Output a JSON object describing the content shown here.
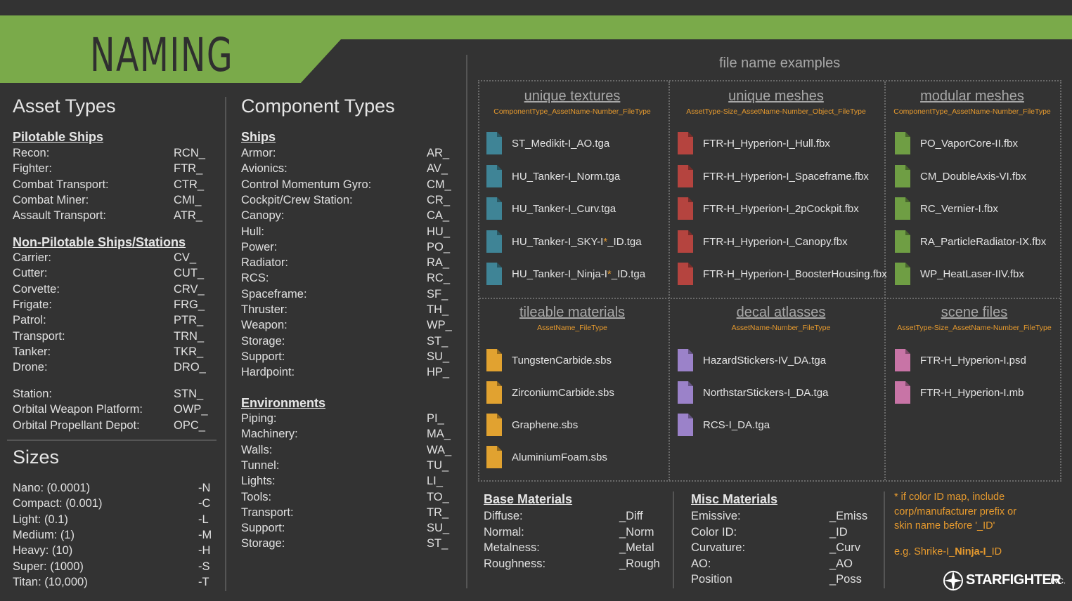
{
  "banner": {
    "title": "NAMING"
  },
  "asset_types": {
    "title": "Asset Types",
    "pilotable": {
      "heading": "Pilotable Ships",
      "items": [
        {
          "label": "Recon:",
          "code": "RCN_"
        },
        {
          "label": "Fighter:",
          "code": "FTR_"
        },
        {
          "label": "Combat Transport:",
          "code": "CTR_"
        },
        {
          "label": "Combat Miner:",
          "code": "CMI_"
        },
        {
          "label": "Assault Transport:",
          "code": "ATR_"
        }
      ]
    },
    "non_pilotable": {
      "heading": "Non-Pilotable Ships/Stations",
      "items": [
        {
          "label": "Carrier:",
          "code": "CV_"
        },
        {
          "label": "Cutter:",
          "code": "CUT_"
        },
        {
          "label": "Corvette:",
          "code": "CRV_"
        },
        {
          "label": "Frigate:",
          "code": "FRG_"
        },
        {
          "label": "Patrol:",
          "code": "PTR_"
        },
        {
          "label": "Transport:",
          "code": "TRN_"
        },
        {
          "label": "Tanker:",
          "code": "TKR_"
        },
        {
          "label": "Drone:",
          "code": "DRO_"
        }
      ],
      "stations": [
        {
          "label": "Station:",
          "code": "STN_"
        },
        {
          "label": "Orbital Weapon Platform:",
          "code": "OWP_"
        },
        {
          "label": "Orbital Propellant Depot:",
          "code": "OPC_"
        }
      ]
    }
  },
  "sizes": {
    "title": "Sizes",
    "items": [
      {
        "label": "Nano: (0.0001)",
        "code": "-N"
      },
      {
        "label": "Compact:  (0.001)",
        "code": "-C"
      },
      {
        "label": "Light: (0.1)",
        "code": "-L"
      },
      {
        "label": "Medium: (1)",
        "code": "-M"
      },
      {
        "label": "Heavy: (10)",
        "code": "-H"
      },
      {
        "label": "Super: (1000)",
        "code": "-S"
      },
      {
        "label": "Titan: (10,000)",
        "code": "-T"
      }
    ]
  },
  "component_types": {
    "title": "Component Types",
    "ships": {
      "heading": "Ships",
      "items": [
        {
          "label": "Armor:",
          "code": "AR_"
        },
        {
          "label": "Avionics:",
          "code": "AV_"
        },
        {
          "label": "Control Momentum Gyro:",
          "code": "CM_"
        },
        {
          "label": "Cockpit/Crew Station:",
          "code": "CR_"
        },
        {
          "label": "Canopy:",
          "code": "CA_"
        },
        {
          "label": "Hull:",
          "code": "HU_"
        },
        {
          "label": "Power:",
          "code": "PO_"
        },
        {
          "label": "Radiator:",
          "code": "RA_"
        },
        {
          "label": "RCS:",
          "code": "RC_"
        },
        {
          "label": "Spaceframe:",
          "code": "SF_"
        },
        {
          "label": "Thruster:",
          "code": "TH_"
        },
        {
          "label": "Weapon:",
          "code": "WP_"
        },
        {
          "label": "Storage:",
          "code": "ST_"
        },
        {
          "label": "Support:",
          "code": "SU_"
        },
        {
          "label": "Hardpoint:",
          "code": "HP_"
        }
      ]
    },
    "environments": {
      "heading": "Environments",
      "items": [
        {
          "label": "Piping:",
          "code": "PI_"
        },
        {
          "label": "Machinery:",
          "code": "MA_"
        },
        {
          "label": "Walls:",
          "code": "WA_"
        },
        {
          "label": "Tunnel:",
          "code": "TU_"
        },
        {
          "label": "Lights:",
          "code": "LI_"
        },
        {
          "label": "Tools:",
          "code": "TO_"
        },
        {
          "label": "Transport:",
          "code": "TR_"
        },
        {
          "label": "Support:",
          "code": "SU_"
        },
        {
          "label": "Storage:",
          "code": "ST_"
        }
      ]
    }
  },
  "examples": {
    "title": "file name examples",
    "categories": [
      {
        "title": "unique textures",
        "pattern": "ComponentType_AssetName-Number_FileType",
        "color": "#3f8496",
        "files": [
          {
            "text": "ST_Medikit-I_AO.tga"
          },
          {
            "text": "HU_Tanker-I_Norm.tga"
          },
          {
            "text": "HU_Tanker-I_Curv.tga"
          },
          {
            "pre": "HU_Tanker-I_SKY-I",
            "mark": "*",
            "post": "_ID.tga"
          },
          {
            "pre": "HU_Tanker-I_Ninja-I",
            "mark": "*",
            "post": "_ID.tga"
          }
        ]
      },
      {
        "title": "unique meshes",
        "pattern": "AssetType-Size_AssetName-Number_Object_FileType",
        "color": "#b5443f",
        "files": [
          {
            "text": "FTR-H_Hyperion-I_Hull.fbx"
          },
          {
            "text": "FTR-H_Hyperion-I_Spaceframe.fbx"
          },
          {
            "text": "FTR-H_Hyperion-I_2pCockpit.fbx"
          },
          {
            "text": "FTR-H_Hyperion-I_Canopy.fbx"
          },
          {
            "text": "FTR-H_Hyperion-I_BoosterHousing.fbx"
          }
        ]
      },
      {
        "title": "modular meshes",
        "pattern": "ComponentType_AssetName-Number_FileType",
        "color": "#6f9e44",
        "files": [
          {
            "text": "PO_VaporCore-II.fbx"
          },
          {
            "text": "CM_DoubleAxis-VI.fbx"
          },
          {
            "text": "RC_Vernier-I.fbx"
          },
          {
            "text": "RA_ParticleRadiator-IX.fbx"
          },
          {
            "text": "WP_HeatLaser-IIV.fbx"
          }
        ]
      },
      {
        "title": "tileable materials",
        "pattern": "AssetName_FileType",
        "color": "#e1a230",
        "files": [
          {
            "text": "TungstenCarbide.sbs"
          },
          {
            "text": "ZirconiumCarbide.sbs"
          },
          {
            "text": "Graphene.sbs"
          },
          {
            "text": "AluminiumFoam.sbs"
          }
        ]
      },
      {
        "title": "decal atlasses",
        "pattern": "AssetName-Number_FileType",
        "color": "#9b82c9",
        "files": [
          {
            "text": "HazardStickers-IV_DA.tga"
          },
          {
            "text": "NorthstarStickers-I_DA.tga"
          },
          {
            "text": "RCS-I_DA.tga"
          }
        ]
      },
      {
        "title": "scene files",
        "pattern": "AssetType-Size_AssetName-Number_FileType",
        "color": "#c874a6",
        "files": [
          {
            "text": "FTR-H_Hyperion-I.psd"
          },
          {
            "text": "FTR-H_Hyperion-I.mb"
          }
        ]
      }
    ]
  },
  "base_materials": {
    "heading": "Base Materials",
    "items": [
      {
        "label": "Diffuse:",
        "code": "_Diff"
      },
      {
        "label": "Normal:",
        "code": "_Norm"
      },
      {
        "label": "Metalness:",
        "code": "_Metal"
      },
      {
        "label": "Roughness:",
        "code": "_Rough"
      }
    ]
  },
  "misc_materials": {
    "heading": "Misc Materials",
    "items": [
      {
        "label": "Emissive:",
        "code": "_Emiss"
      },
      {
        "label": "Color ID:",
        "code": "_ID"
      },
      {
        "label": "Curvature:",
        "code": "_Curv"
      },
      {
        "label": "AO:",
        "code": "_AO"
      },
      {
        "label": "Position",
        "code": "_Poss"
      }
    ]
  },
  "note": {
    "lines": [
      "* if color ID map, include",
      "corp/manufacturer prefix or",
      "skin name before '_ID'"
    ],
    "example_pre": "e.g. Shrike-I_",
    "example_bold": "Ninja-I",
    "example_post": "_ID"
  },
  "logo": {
    "text": "STARFIGHTER",
    "suffix": "INC."
  },
  "colors": {
    "banner": "#7aaa4a",
    "background": "#333333",
    "accent_orange": "#e69a2e"
  }
}
